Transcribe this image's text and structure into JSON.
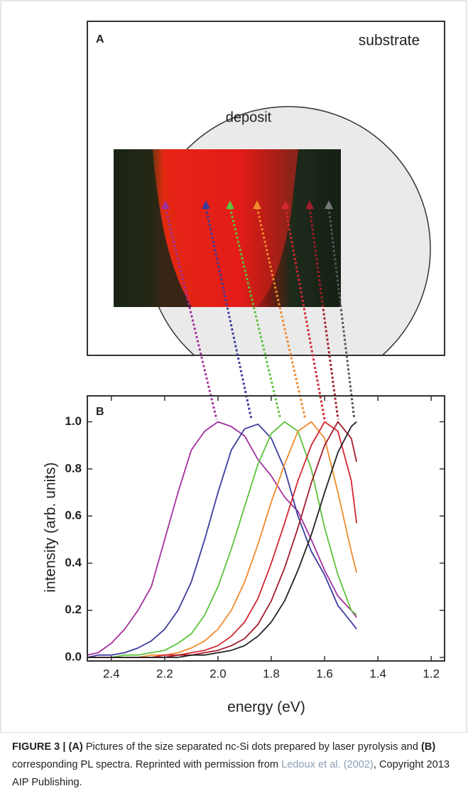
{
  "panel_a": {
    "label": "A",
    "substrate": "substrate",
    "deposit": "deposit"
  },
  "chart_data": {
    "type": "line",
    "panel_label": "B",
    "xlabel": "energy (eV)",
    "ylabel": "intensity (arb. units)",
    "x": [
      2.49,
      2.45,
      2.4,
      2.35,
      2.3,
      2.25,
      2.2,
      2.15,
      2.1,
      2.05,
      2.0,
      1.95,
      1.9,
      1.85,
      1.8,
      1.75,
      1.7,
      1.65,
      1.6,
      1.55,
      1.5,
      1.48
    ],
    "series": [
      {
        "color": "#a2309c",
        "values": [
          0.01,
          0.02,
          0.06,
          0.12,
          0.2,
          0.3,
          0.5,
          0.7,
          0.88,
          0.96,
          1.0,
          0.98,
          0.94,
          0.84,
          0.77,
          0.68,
          0.62,
          0.5,
          0.37,
          0.26,
          0.2,
          0.17
        ]
      },
      {
        "color": "#3c3c9c",
        "values": [
          0.0,
          0.01,
          0.01,
          0.02,
          0.04,
          0.07,
          0.12,
          0.2,
          0.32,
          0.5,
          0.7,
          0.88,
          0.97,
          0.99,
          0.93,
          0.8,
          0.6,
          0.45,
          0.35,
          0.22,
          0.15,
          0.12
        ]
      },
      {
        "color": "#5cc23c",
        "values": [
          0,
          0,
          0,
          0.01,
          0.01,
          0.02,
          0.03,
          0.06,
          0.1,
          0.18,
          0.3,
          0.46,
          0.64,
          0.82,
          0.95,
          1.0,
          0.96,
          0.8,
          0.55,
          0.35,
          0.2,
          0.18
        ]
      },
      {
        "color": "#f08a2c",
        "values": [
          0,
          0,
          0,
          0,
          0,
          0.01,
          0.01,
          0.02,
          0.04,
          0.07,
          0.12,
          0.2,
          0.32,
          0.48,
          0.66,
          0.82,
          0.96,
          1.0,
          0.93,
          0.7,
          0.45,
          0.36
        ]
      },
      {
        "color": "#d42632",
        "values": [
          0,
          0,
          0,
          0,
          0,
          0,
          0.01,
          0.01,
          0.02,
          0.03,
          0.05,
          0.09,
          0.15,
          0.25,
          0.4,
          0.57,
          0.75,
          0.9,
          1.0,
          0.96,
          0.75,
          0.57
        ]
      },
      {
        "color": "#a21c2c",
        "values": [
          0,
          0,
          0,
          0,
          0,
          0,
          0,
          0.01,
          0.01,
          0.02,
          0.03,
          0.05,
          0.08,
          0.14,
          0.24,
          0.38,
          0.55,
          0.74,
          0.9,
          1.0,
          0.93,
          0.83
        ]
      },
      {
        "color": "#222222",
        "values": [
          0,
          0,
          0,
          0,
          0,
          0,
          0,
          0,
          0.01,
          0.01,
          0.02,
          0.03,
          0.05,
          0.09,
          0.15,
          0.24,
          0.37,
          0.52,
          0.7,
          0.87,
          0.98,
          1.0
        ]
      }
    ],
    "xlim": [
      2.49,
      1.15
    ],
    "ylim": [
      -0.015,
      1.11
    ],
    "xticks": [
      2.4,
      2.2,
      {
        "value": 2,
        "label": "2.0"
      },
      1.8,
      1.6,
      1.4,
      1.2
    ],
    "yticks": [
      {
        "value": 0,
        "label": "0.0"
      },
      0.2,
      0.4,
      0.6,
      0.8,
      {
        "value": 1,
        "label": "1.0"
      }
    ]
  },
  "caption": [
    {
      "text": "FIGURE 3 | (A)",
      "bold": true
    },
    {
      "text": " Pictures of the size separated nc-Si dots prepared by laser pyrolysis and "
    },
    {
      "text": "(B)",
      "bold": true
    },
    {
      "text": " corresponding PL spectra. Reprinted with permission from "
    },
    {
      "text": "Ledoux et al. (2002)",
      "link": true
    },
    {
      "text": ", Copyright 2013 AIP Publishing."
    }
  ]
}
